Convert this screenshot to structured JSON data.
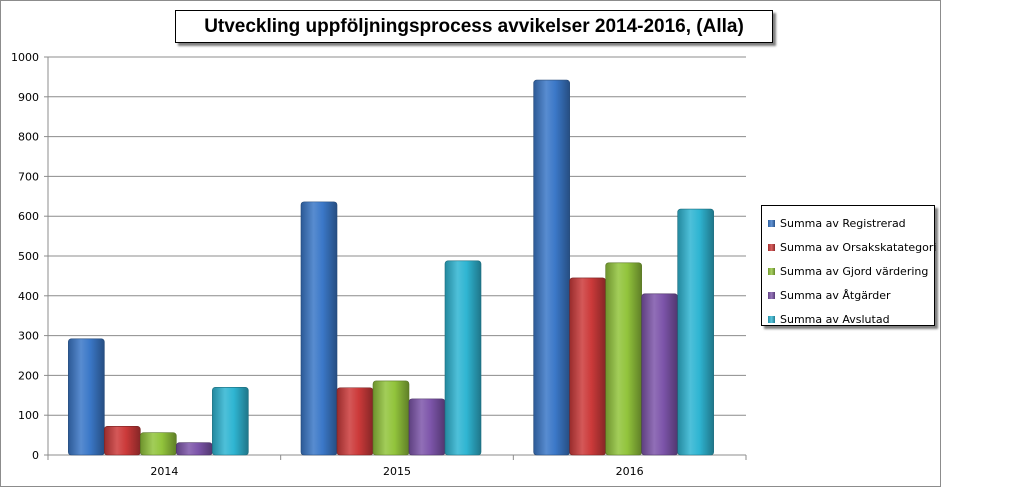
{
  "chart_data": {
    "type": "bar",
    "title": "Utveckling uppföljningsprocess avvikelser 2014-2016, (Alla)",
    "categories": [
      "2014",
      "2015",
      "2016"
    ],
    "series": [
      {
        "name": "Summa av Registrerad",
        "values": [
          292,
          636,
          942
        ],
        "color": "#3b78c8"
      },
      {
        "name": "Summa av Orsakskatategori",
        "values": [
          72,
          169,
          445
        ],
        "color": "#cc3a3a"
      },
      {
        "name": "Summa av Gjord värdering",
        "values": [
          56,
          186,
          483
        ],
        "color": "#92c43c"
      },
      {
        "name": "Summa av Åtgärder",
        "values": [
          31,
          141,
          405
        ],
        "color": "#7d55aa"
      },
      {
        "name": "Summa av Avslutad",
        "values": [
          170,
          488,
          618
        ],
        "color": "#2fb5d2"
      }
    ],
    "ylim": [
      0,
      1000
    ],
    "yticks": [
      "0",
      "100",
      "200",
      "300",
      "400",
      "500",
      "600",
      "700",
      "800",
      "900",
      "1000"
    ],
    "grid": true,
    "legend_position": "right"
  }
}
